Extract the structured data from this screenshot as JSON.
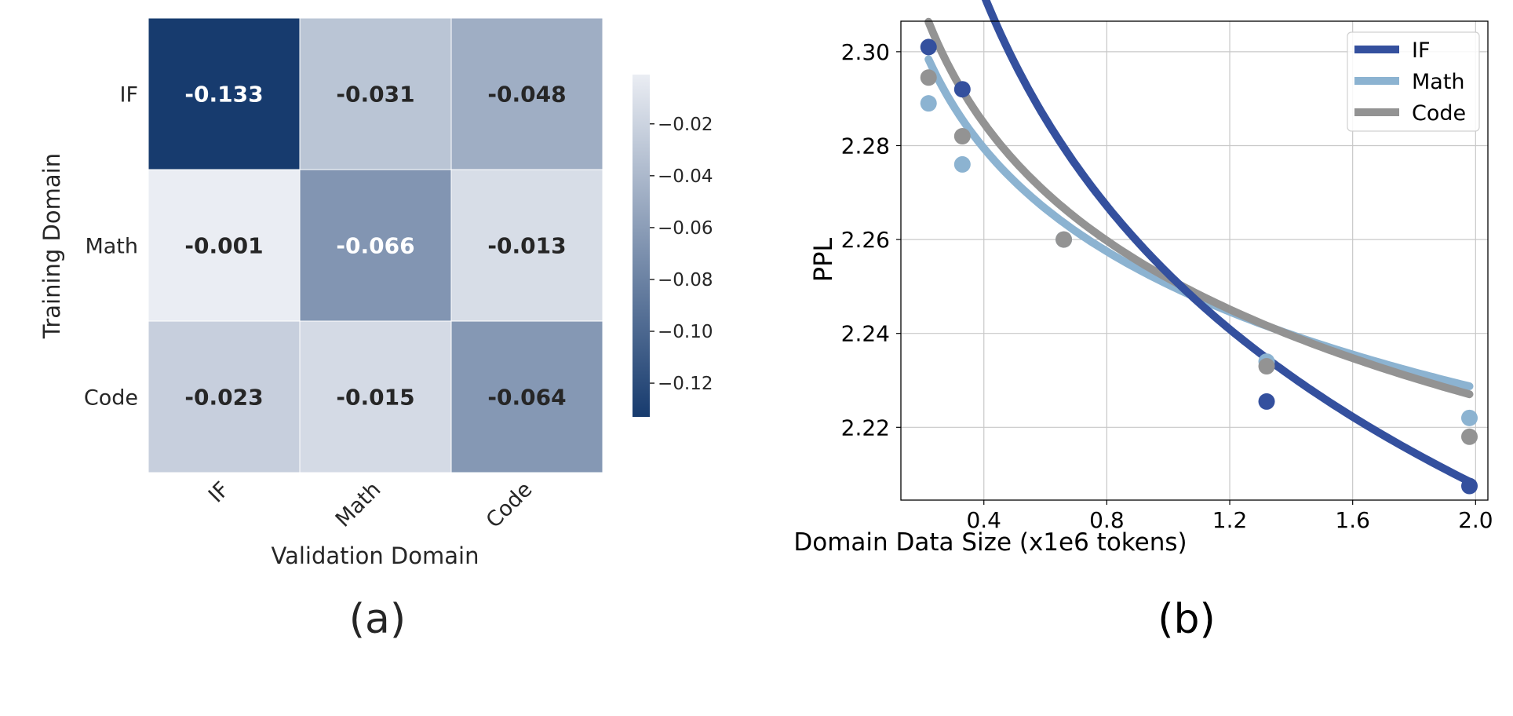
{
  "panels": [
    {
      "label": "(a)"
    },
    {
      "label": "(b)"
    }
  ],
  "colors": {
    "heat_dark": "#173b6e",
    "heat_light": "#eaedf3",
    "text_dark": "#262626",
    "text_light": "#ffffff",
    "if_series": "#34509e",
    "math_series": "#8cb3d1",
    "code_series": "#939393",
    "grid": "#c8c8c8"
  },
  "chart_data": [
    {
      "type": "heatmap",
      "title": "",
      "xlabel": "Validation Domain",
      "ylabel": "Training Domain",
      "x_categories": [
        "IF",
        "Math",
        "Code"
      ],
      "y_categories": [
        "IF",
        "Math",
        "Code"
      ],
      "values": [
        [
          -0.133,
          -0.031,
          -0.048
        ],
        [
          -0.001,
          -0.066,
          -0.013
        ],
        [
          -0.023,
          -0.015,
          -0.064
        ]
      ],
      "value_labels": [
        [
          "-0.133",
          "-0.031",
          "-0.048"
        ],
        [
          "-0.001",
          "-0.066",
          "-0.013"
        ],
        [
          "-0.023",
          "-0.015",
          "-0.064"
        ]
      ],
      "colorbar": {
        "range": [
          -0.133,
          -0.001
        ],
        "ticks": [
          -0.02,
          -0.04,
          -0.06,
          -0.08,
          -0.1,
          -0.12
        ],
        "tick_labels": [
          "−0.02",
          "−0.04",
          "−0.06",
          "−0.08",
          "−0.10",
          "−0.12"
        ]
      }
    },
    {
      "type": "line",
      "title": "",
      "xlabel": "Domain Data Size (x1e6 tokens)",
      "ylabel": "PPL",
      "xlim": [
        0.13,
        2.04
      ],
      "ylim": [
        2.2045,
        2.3065
      ],
      "x_ticks": [
        0.4,
        0.8,
        1.2,
        1.6,
        2.0
      ],
      "x_tick_labels": [
        "0.4",
        "0.8",
        "1.2",
        "1.6",
        "2.0"
      ],
      "y_ticks": [
        2.22,
        2.24,
        2.26,
        2.28,
        2.3
      ],
      "y_tick_labels": [
        "2.22",
        "2.24",
        "2.26",
        "2.28",
        "2.30"
      ],
      "grid": true,
      "legend_position": "top-right",
      "series": [
        {
          "name": "IF",
          "points": [
            [
              0.22,
              2.301
            ],
            [
              0.33,
              2.292
            ],
            [
              1.32,
              2.2255
            ],
            [
              1.98,
              2.2075
            ]
          ],
          "fit": {
            "a": 2.2527,
            "b": -0.0648
          }
        },
        {
          "name": "Math",
          "points": [
            [
              0.22,
              2.289
            ],
            [
              0.33,
              2.276
            ],
            [
              0.66,
              2.26
            ],
            [
              1.32,
              2.234
            ],
            [
              1.98,
              2.222
            ]
          ],
          "fit": {
            "a": 2.2504,
            "b": -0.0317
          }
        },
        {
          "name": "Code",
          "points": [
            [
              0.22,
              2.2945
            ],
            [
              0.33,
              2.282
            ],
            [
              0.66,
              2.26
            ],
            [
              1.32,
              2.233
            ],
            [
              1.98,
              2.218
            ]
          ],
          "fit": {
            "a": 2.2517,
            "b": -0.0361
          }
        }
      ]
    }
  ]
}
